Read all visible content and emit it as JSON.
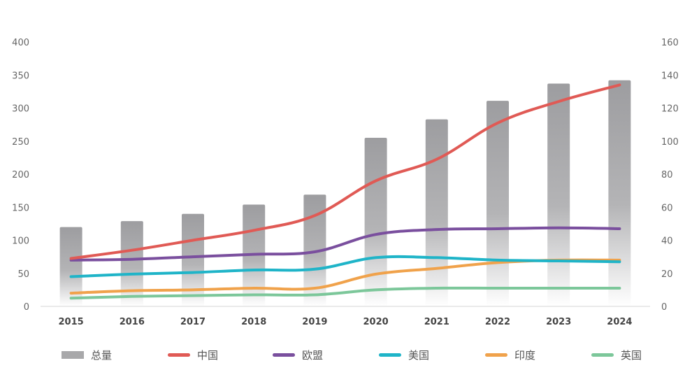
{
  "chart_data": {
    "type": "bar+line",
    "categories": [
      "2015",
      "2016",
      "2017",
      "2018",
      "2019",
      "2020",
      "2021",
      "2022",
      "2023",
      "2024"
    ],
    "bar_series": {
      "name": "总量",
      "axis": "left",
      "color": "#a8a8aa",
      "values": [
        120,
        129,
        140,
        154,
        169,
        255,
        283,
        311,
        337,
        342
      ]
    },
    "line_series": [
      {
        "name": "中国",
        "axis": "right",
        "color": "#e05a55",
        "values": [
          29,
          34,
          40,
          46,
          55,
          76,
          89,
          111,
          124,
          134
        ]
      },
      {
        "name": "欧盟",
        "axis": "right",
        "color": "#7a4f9e",
        "values": [
          28,
          28.5,
          30,
          31.5,
          33,
          43.5,
          46.5,
          47,
          47.5,
          47
        ]
      },
      {
        "name": "美国",
        "axis": "right",
        "color": "#1fb4c8",
        "values": [
          18,
          19.5,
          20.5,
          22,
          22.5,
          29.5,
          29.5,
          28,
          27.5,
          27
        ]
      },
      {
        "name": "印度",
        "axis": "right",
        "color": "#f0a24b",
        "values": [
          8,
          9.5,
          10,
          11,
          11,
          19.5,
          23,
          26.5,
          28,
          28
        ]
      },
      {
        "name": "英国",
        "axis": "right",
        "color": "#7cc79a",
        "values": [
          5,
          6,
          6.5,
          7,
          7,
          10,
          11,
          11,
          11,
          11
        ]
      }
    ],
    "y_left": {
      "min": 0,
      "max": 400,
      "ticks": [
        0,
        50,
        100,
        150,
        200,
        250,
        300,
        350,
        400
      ]
    },
    "y_right": {
      "min": 0,
      "max": 160,
      "ticks": [
        0,
        20,
        40,
        60,
        80,
        100,
        120,
        140,
        160
      ]
    },
    "grid": false,
    "legend_position": "bottom"
  }
}
